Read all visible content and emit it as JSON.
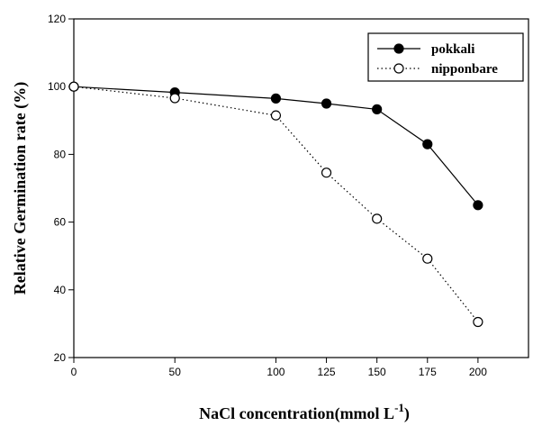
{
  "chart_data": {
    "type": "line",
    "title": "",
    "xlabel": "NaCl concentration(mmol L",
    "xlabel_superscript": "-1",
    "xlabel_close": ")",
    "ylabel": "Relative Germination rate (%)",
    "x": [
      0,
      50,
      100,
      125,
      150,
      175,
      200
    ],
    "xlim": [
      0,
      225
    ],
    "ylim": [
      20,
      120
    ],
    "x_ticks": [
      "0",
      "50",
      "100",
      "125",
      "150",
      "175",
      "200"
    ],
    "y_ticks": [
      "20",
      "40",
      "60",
      "80",
      "100",
      "120"
    ],
    "grid": false,
    "legend_position": "top-right",
    "series": [
      {
        "name": "pokkali",
        "values": [
          100,
          98.3,
          96.5,
          95,
          93.3,
          83,
          65
        ],
        "marker": "filled-circle",
        "line_style": "solid",
        "color": "#000000"
      },
      {
        "name": "nipponbare",
        "values": [
          100,
          96.6,
          91.5,
          74.6,
          61,
          49.2,
          30.5
        ],
        "marker": "open-circle",
        "line_style": "dotted",
        "color": "#000000"
      }
    ]
  }
}
